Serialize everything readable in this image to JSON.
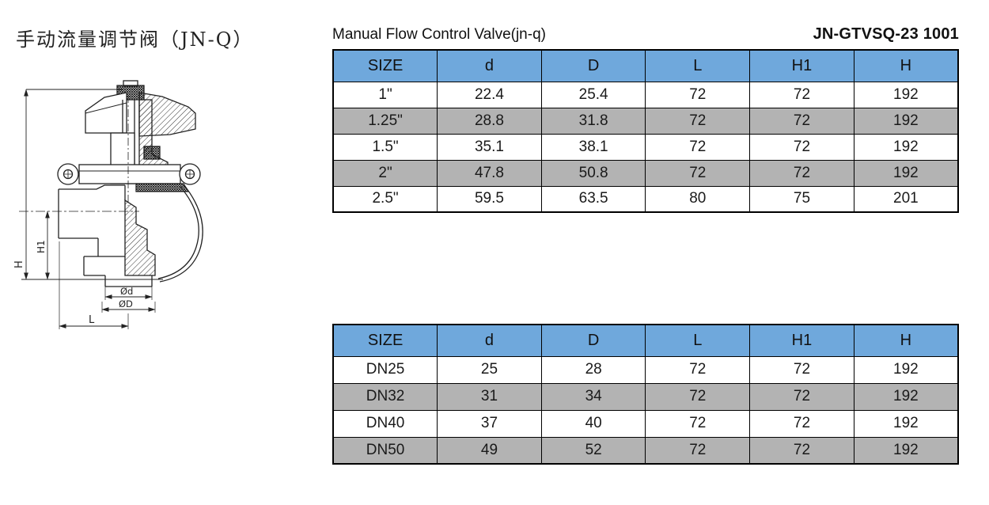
{
  "page": {
    "title_cn": "手动流量调节阀（JN-Q）",
    "caption_en": "Manual Flow Control Valve(jn-q)",
    "model_code": "JN-GTVSQ-23 1001"
  },
  "colors": {
    "header_blue": "#6fa8dc",
    "row_gray": "#b3b3b3",
    "row_white": "#ffffff",
    "line_black": "#000000"
  },
  "drawing": {
    "description": "cross-section technical drawing of manual flow control valve",
    "labels": {
      "h": "H",
      "h1": "H1",
      "l": "L",
      "od_small": "Ød",
      "od_large": "ØD"
    }
  },
  "tables": [
    {
      "name": "inch-size-table",
      "columns": [
        "SIZE",
        "d",
        "D",
        "L",
        "H1",
        "H"
      ],
      "rows": [
        [
          "1\"",
          "22.4",
          "25.4",
          "72",
          "72",
          "192"
        ],
        [
          "1.25\"",
          "28.8",
          "31.8",
          "72",
          "72",
          "192"
        ],
        [
          "1.5\"",
          "35.1",
          "38.1",
          "72",
          "72",
          "192"
        ],
        [
          "2\"",
          "47.8",
          "50.8",
          "72",
          "72",
          "192"
        ],
        [
          "2.5\"",
          "59.5",
          "63.5",
          "80",
          "75",
          "201"
        ]
      ]
    },
    {
      "name": "dn-size-table",
      "columns": [
        "SIZE",
        "d",
        "D",
        "L",
        "H1",
        "H"
      ],
      "rows": [
        [
          "DN25",
          "25",
          "28",
          "72",
          "72",
          "192"
        ],
        [
          "DN32",
          "31",
          "34",
          "72",
          "72",
          "192"
        ],
        [
          "DN40",
          "37",
          "40",
          "72",
          "72",
          "192"
        ],
        [
          "DN50",
          "49",
          "52",
          "72",
          "72",
          "192"
        ]
      ]
    }
  ]
}
